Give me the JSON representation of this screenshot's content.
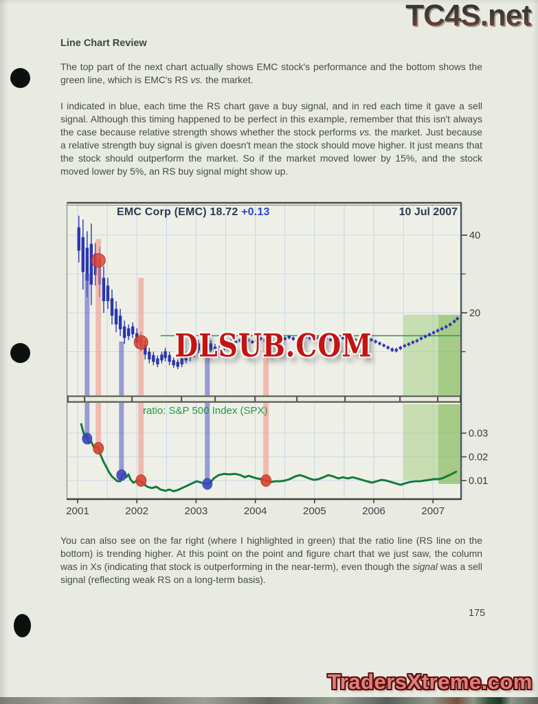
{
  "texts": {
    "brand_top": "TC4S.net",
    "brand_bottom": "TradersXtreme.com",
    "watermark": "DLSUB.COM",
    "page_number": "175",
    "heading": "Line Chart Review",
    "para1": {
      "a": "The top part of the next chart actually shows EMC stock's performance and the bottom shows the green line, which is EMC's RS ",
      "b": "vs.",
      "c": " the market."
    },
    "para2": {
      "a": "I indicated in blue, each time the RS chart gave a buy signal, and in red each time it gave a sell signal.  Although this timing happened to be perfect in this example, remember that this isn't always the case because relative strength shows whether the stock performs ",
      "b": "vs.",
      "c": " the market.  Just because a relative strength buy signal is given doesn't mean the stock should move higher.  It just means that the stock should outperform the market.  So if the market moved lower by 15%, and the stock moved lower by 5%, an RS buy signal might show up."
    },
    "para3": {
      "a": "You can also see on the far right (where I highlighted in green) that the ratio line (RS line on the bottom) is trending higher.  At this point on the point and figure chart that we just saw, the column was in Xs (indicating that stock is outperforming in the near-term), even though the ",
      "b": "signal",
      "c": " was a sell signal (reflecting weak RS on a long-term basis)."
    }
  },
  "chart_data": {
    "type": "candlestick+line",
    "title": "EMC Corp (EMC) 18.72",
    "change": "+0.13",
    "date": "10 Jul 2007",
    "x_ticks": [
      [
        2001,
        "2001"
      ],
      [
        2002,
        "2002"
      ],
      [
        2003,
        "2003"
      ],
      [
        2004,
        "2004"
      ],
      [
        2005,
        "2005"
      ],
      [
        2006,
        "2006"
      ],
      [
        2007,
        "2007"
      ]
    ],
    "colors": {
      "candle": "#2c35ae",
      "ratio_line": "#137a3a",
      "buy": "#3a43bb",
      "sell": "#d9402e",
      "band_buy": "#5058c8",
      "band_sell": "#f0988c",
      "highlight_light": "#a6cf87",
      "highlight_dark": "#74b347",
      "green_line": "#2f9e57",
      "grid": "#c7d5e9"
    },
    "top_panel": {
      "yticks": [
        [
          40,
          "40"
        ],
        [
          20,
          "20"
        ]
      ],
      "yticks_minor": [
        30,
        10
      ],
      "green_line": {
        "from": 2002.4,
        "price": 14.1
      },
      "candles": [
        [
          2001.02,
          45,
          33
        ],
        [
          2001.09,
          44,
          26
        ],
        [
          2001.16,
          41,
          24
        ],
        [
          2001.23,
          43,
          22
        ],
        [
          2001.3,
          38,
          27
        ],
        [
          2001.37,
          37,
          24
        ],
        [
          2001.44,
          32,
          20
        ],
        [
          2001.51,
          29,
          21
        ],
        [
          2001.58,
          26,
          17
        ],
        [
          2001.65,
          23,
          15
        ],
        [
          2001.72,
          21,
          14
        ],
        [
          2001.79,
          18,
          12
        ],
        [
          2001.86,
          17,
          13
        ],
        [
          2001.93,
          17.5,
          13.5
        ],
        [
          2002.0,
          16,
          11
        ],
        [
          2002.07,
          15,
          10
        ],
        [
          2002.14,
          13,
          8
        ],
        [
          2002.21,
          11,
          7
        ],
        [
          2002.28,
          10,
          6.5
        ],
        [
          2002.35,
          9,
          6
        ],
        [
          2002.42,
          10,
          7
        ],
        [
          2002.48,
          11,
          7.5
        ],
        [
          2002.55,
          10,
          6.5
        ],
        [
          2002.62,
          8.5,
          5.8
        ],
        [
          2002.69,
          8,
          5.5
        ],
        [
          2002.76,
          9,
          6
        ],
        [
          2002.83,
          10,
          7
        ],
        [
          2002.9,
          11,
          7.5
        ],
        [
          2002.97,
          12,
          8.5
        ],
        [
          2003.04,
          13,
          9.5
        ],
        [
          2003.11,
          14,
          10.5
        ],
        [
          2003.18,
          14.5,
          11
        ],
        [
          2003.25,
          13,
          9.5
        ],
        [
          2003.32,
          12,
          9
        ],
        [
          2003.39,
          11.5,
          8.5
        ],
        [
          2003.46,
          12.5,
          9.5
        ],
        [
          2003.53,
          13,
          10.5
        ],
        [
          2003.6,
          13.4,
          12.2
        ],
        [
          2003.67,
          13,
          12
        ],
        [
          2003.74,
          13.4,
          12.4
        ],
        [
          2003.81,
          13.9,
          12.8
        ],
        [
          2003.88,
          13.5,
          12.4
        ],
        [
          2003.95,
          13,
          12
        ],
        [
          2004.02,
          13.4,
          12.3
        ],
        [
          2004.09,
          13.9,
          12.8
        ],
        [
          2004.16,
          13.5,
          12.3
        ],
        [
          2004.22,
          12.9,
          11.8
        ],
        [
          2004.29,
          12.4,
          11.3
        ],
        [
          2004.36,
          12.9,
          11.9
        ],
        [
          2004.43,
          13.4,
          12.3
        ],
        [
          2004.5,
          13.9,
          12.8
        ],
        [
          2004.57,
          14.3,
          13.2
        ],
        [
          2004.64,
          13.9,
          12.8
        ],
        [
          2004.71,
          13.4,
          12.3
        ],
        [
          2004.78,
          13.9,
          12.9
        ],
        [
          2004.85,
          14.4,
          13.3
        ],
        [
          2004.92,
          14,
          13
        ],
        [
          2004.99,
          13.5,
          12.6
        ],
        [
          2005.06,
          14,
          13
        ],
        [
          2005.13,
          14.4,
          13.4
        ],
        [
          2005.2,
          14,
          13
        ],
        [
          2005.27,
          13.5,
          12.6
        ],
        [
          2005.34,
          14,
          13
        ],
        [
          2005.41,
          14.4,
          13.4
        ],
        [
          2005.48,
          14,
          13
        ],
        [
          2005.55,
          13.5,
          12.6
        ],
        [
          2005.62,
          14,
          13
        ],
        [
          2005.69,
          13.5,
          12.6
        ],
        [
          2005.76,
          13.1,
          12.1
        ],
        [
          2005.82,
          13.5,
          12.6
        ],
        [
          2005.89,
          14,
          13
        ],
        [
          2005.96,
          13.5,
          12.6
        ],
        [
          2006.03,
          13.1,
          12.1
        ],
        [
          2006.1,
          12.6,
          11.6
        ],
        [
          2006.17,
          12.1,
          11.1
        ],
        [
          2006.24,
          11.6,
          10.5
        ],
        [
          2006.31,
          11.1,
          9.9
        ],
        [
          2006.38,
          11,
          9.8
        ],
        [
          2006.45,
          11.5,
          10.4
        ],
        [
          2006.52,
          12,
          11
        ],
        [
          2006.59,
          12.4,
          11.4
        ],
        [
          2006.66,
          12.9,
          11.9
        ],
        [
          2006.73,
          13.3,
          12.3
        ],
        [
          2006.8,
          13.9,
          12.9
        ],
        [
          2006.87,
          14.4,
          13.4
        ],
        [
          2006.94,
          14.9,
          13.9
        ],
        [
          2007.01,
          15.4,
          14.4
        ],
        [
          2007.08,
          15.9,
          14.9
        ],
        [
          2007.15,
          16.4,
          15.4
        ],
        [
          2007.22,
          16.9,
          15.9
        ],
        [
          2007.29,
          17.5,
          16.5
        ],
        [
          2007.36,
          18.3,
          17.3
        ],
        [
          2007.41,
          19,
          18
        ]
      ]
    },
    "bottom_panel": {
      "label": "ratio: S&P 500 Index (SPX)",
      "yticks": [
        [
          0.03,
          "0.03"
        ],
        [
          0.02,
          "0.02"
        ],
        [
          0.01,
          "0.01"
        ]
      ],
      "line": [
        [
          2001.06,
          0.0338
        ],
        [
          2001.09,
          0.0309
        ],
        [
          2001.13,
          0.0277
        ],
        [
          2001.15,
          0.0294
        ],
        [
          2001.19,
          0.0257
        ],
        [
          2001.23,
          0.0265
        ],
        [
          2001.27,
          0.0242
        ],
        [
          2001.31,
          0.0242
        ],
        [
          2001.35,
          0.0236
        ],
        [
          2001.39,
          0.0207
        ],
        [
          2001.44,
          0.0178
        ],
        [
          2001.49,
          0.0155
        ],
        [
          2001.53,
          0.0135
        ],
        [
          2001.58,
          0.0117
        ],
        [
          2001.63,
          0.0106
        ],
        [
          2001.67,
          0.0097
        ],
        [
          2001.72,
          0.0097
        ],
        [
          2001.75,
          0.0123
        ],
        [
          2001.79,
          0.0132
        ],
        [
          2001.82,
          0.0114
        ],
        [
          2001.86,
          0.0126
        ],
        [
          2001.89,
          0.0106
        ],
        [
          2001.94,
          0.0091
        ],
        [
          2001.99,
          0.0097
        ],
        [
          2002.03,
          0.01
        ],
        [
          2002.08,
          0.0094
        ],
        [
          2002.13,
          0.0082
        ],
        [
          2002.18,
          0.0074
        ],
        [
          2002.25,
          0.0068
        ],
        [
          2002.33,
          0.0074
        ],
        [
          2002.4,
          0.0062
        ],
        [
          2002.48,
          0.0057
        ],
        [
          2002.55,
          0.0062
        ],
        [
          2002.62,
          0.0055
        ],
        [
          2002.69,
          0.006
        ],
        [
          2002.76,
          0.0068
        ],
        [
          2002.84,
          0.0077
        ],
        [
          2002.93,
          0.0088
        ],
        [
          2003.01,
          0.0097
        ],
        [
          2003.09,
          0.0091
        ],
        [
          2003.16,
          0.0086
        ],
        [
          2003.23,
          0.0088
        ],
        [
          2003.3,
          0.011
        ],
        [
          2003.38,
          0.0123
        ],
        [
          2003.47,
          0.0128
        ],
        [
          2003.56,
          0.0126
        ],
        [
          2003.66,
          0.0128
        ],
        [
          2003.75,
          0.0123
        ],
        [
          2003.82,
          0.0114
        ],
        [
          2003.89,
          0.012
        ],
        [
          2003.96,
          0.0114
        ],
        [
          2004.03,
          0.0109
        ],
        [
          2004.1,
          0.0106
        ],
        [
          2004.18,
          0.01
        ],
        [
          2004.26,
          0.0094
        ],
        [
          2004.34,
          0.0097
        ],
        [
          2004.42,
          0.0097
        ],
        [
          2004.5,
          0.01
        ],
        [
          2004.58,
          0.0106
        ],
        [
          2004.67,
          0.0117
        ],
        [
          2004.75,
          0.0123
        ],
        [
          2004.83,
          0.0117
        ],
        [
          2004.91,
          0.0109
        ],
        [
          2004.99,
          0.0103
        ],
        [
          2005.07,
          0.0106
        ],
        [
          2005.15,
          0.0114
        ],
        [
          2005.23,
          0.0123
        ],
        [
          2005.32,
          0.0117
        ],
        [
          2005.4,
          0.0109
        ],
        [
          2005.48,
          0.0114
        ],
        [
          2005.56,
          0.0109
        ],
        [
          2005.64,
          0.0114
        ],
        [
          2005.72,
          0.0109
        ],
        [
          2005.8,
          0.0103
        ],
        [
          2005.88,
          0.0097
        ],
        [
          2005.97,
          0.0091
        ],
        [
          2006.05,
          0.0097
        ],
        [
          2006.13,
          0.0103
        ],
        [
          2006.21,
          0.01
        ],
        [
          2006.29,
          0.0094
        ],
        [
          2006.37,
          0.0088
        ],
        [
          2006.45,
          0.0082
        ],
        [
          2006.53,
          0.0088
        ],
        [
          2006.61,
          0.0094
        ],
        [
          2006.7,
          0.0097
        ],
        [
          2006.78,
          0.0097
        ],
        [
          2006.86,
          0.01
        ],
        [
          2006.94,
          0.0103
        ],
        [
          2007.02,
          0.0106
        ],
        [
          2007.1,
          0.0106
        ],
        [
          2007.18,
          0.0112
        ],
        [
          2007.25,
          0.012
        ],
        [
          2007.32,
          0.0128
        ],
        [
          2007.39,
          0.0137
        ]
      ]
    },
    "signals": {
      "buys": [
        {
          "t": 2001.16,
          "band_top_price": 30,
          "ratio": 0.0277
        },
        {
          "t": 2001.74,
          "band_top_price": 12.6,
          "ratio": 0.0123
        },
        {
          "t": 2003.19,
          "band_top_price": 12,
          "ratio": 0.0086
        }
      ],
      "sells": [
        {
          "t": 2001.35,
          "band_top_price": 39,
          "ratio": 0.0236,
          "price_dot": 33.5
        },
        {
          "t": 2002.07,
          "band_top_price": 29,
          "ratio": 0.01,
          "price_dot": 12.4
        },
        {
          "t": 2004.18,
          "band_top_price": 13.5,
          "ratio": 0.01
        }
      ]
    },
    "highlights": {
      "light": [
        2006.5,
        2007.09
      ],
      "dark": [
        2007.09,
        2007.46
      ]
    }
  }
}
